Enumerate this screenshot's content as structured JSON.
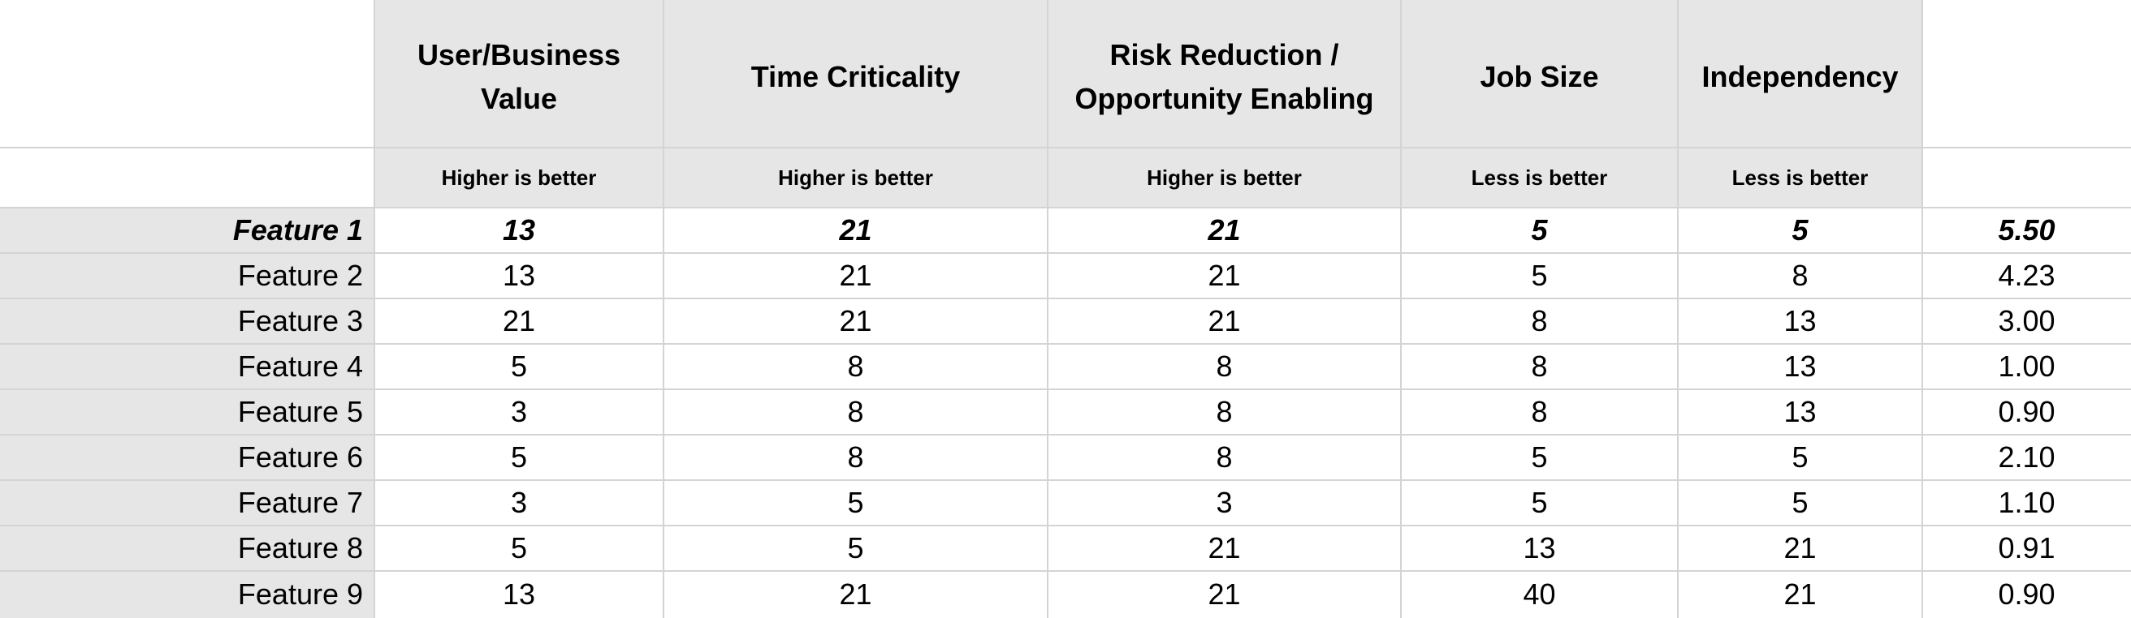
{
  "columns": [
    {
      "title": "User/Business Value",
      "subtitle": "Higher is better"
    },
    {
      "title": "Time Criticality",
      "subtitle": "Higher is better"
    },
    {
      "title": "Risk Reduction / Opportunity Enabling",
      "subtitle": "Higher is better"
    },
    {
      "title": "Job Size",
      "subtitle": "Less is better"
    },
    {
      "title": "Independency",
      "subtitle": "Less is better"
    }
  ],
  "rows": [
    {
      "label": "Feature 1",
      "values": [
        "13",
        "21",
        "21",
        "5",
        "5"
      ],
      "score": "5.50",
      "emphasized": true
    },
    {
      "label": "Feature 2",
      "values": [
        "13",
        "21",
        "21",
        "5",
        "8"
      ],
      "score": "4.23",
      "emphasized": false
    },
    {
      "label": "Feature 3",
      "values": [
        "21",
        "21",
        "21",
        "8",
        "13"
      ],
      "score": "3.00",
      "emphasized": false
    },
    {
      "label": "Feature 4",
      "values": [
        "5",
        "8",
        "8",
        "8",
        "13"
      ],
      "score": "1.00",
      "emphasized": false
    },
    {
      "label": "Feature 5",
      "values": [
        "3",
        "8",
        "8",
        "8",
        "13"
      ],
      "score": "0.90",
      "emphasized": false
    },
    {
      "label": "Feature 6",
      "values": [
        "5",
        "8",
        "8",
        "5",
        "5"
      ],
      "score": "2.10",
      "emphasized": false
    },
    {
      "label": "Feature 7",
      "values": [
        "3",
        "5",
        "3",
        "5",
        "5"
      ],
      "score": "1.10",
      "emphasized": false
    },
    {
      "label": "Feature 8",
      "values": [
        "5",
        "5",
        "21",
        "13",
        "21"
      ],
      "score": "0.91",
      "emphasized": false
    },
    {
      "label": "Feature 9",
      "values": [
        "13",
        "21",
        "21",
        "40",
        "21"
      ],
      "score": "0.90",
      "emphasized": false
    }
  ],
  "colors": {
    "header_fill": "#e6e6e6",
    "gridline": "#d4d4d4"
  }
}
